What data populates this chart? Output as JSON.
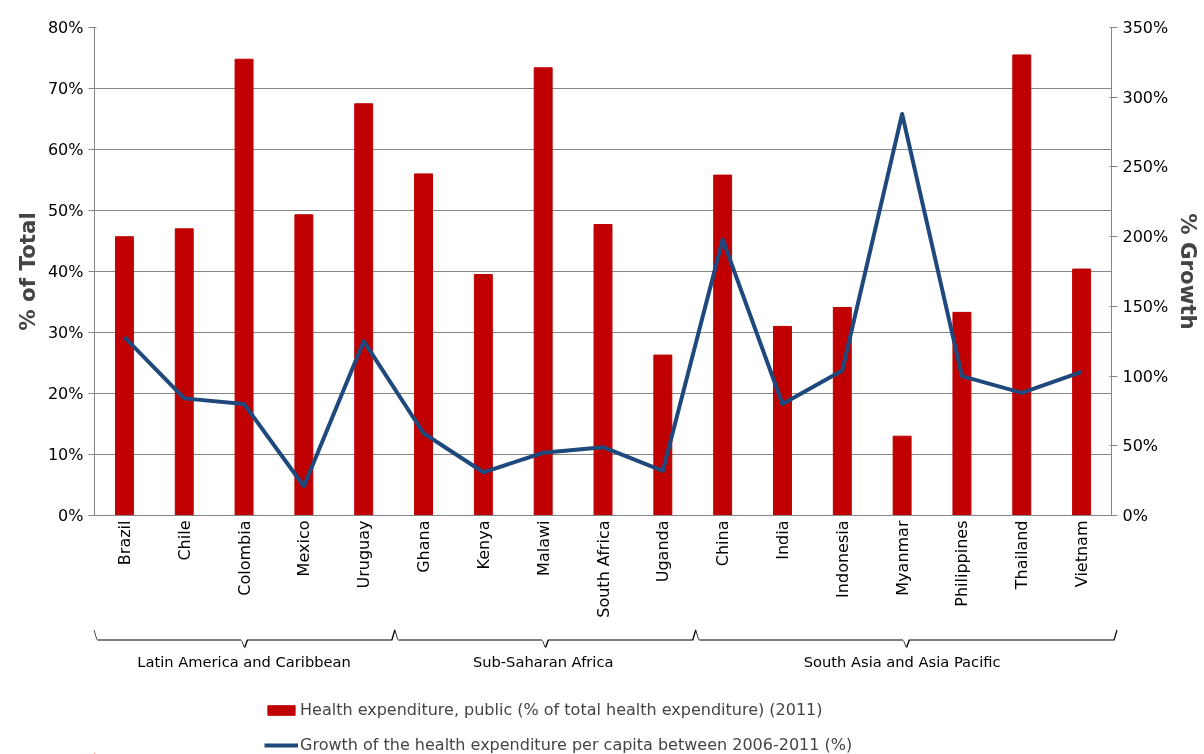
{
  "chart_data": {
    "type": "bar",
    "categories": [
      "Brazil",
      "Chile",
      "Colombia",
      "Mexico",
      "Uruguay",
      "Ghana",
      "Kenya",
      "Malawi",
      "South Africa",
      "Uganda",
      "China",
      "India",
      "Indonesia",
      "Myanmar",
      "Philippines",
      "Thailand",
      "Vietnam"
    ],
    "series": [
      {
        "name": "Health expenditure, public (% of total health expenditure) (2011)",
        "color": "#c00000",
        "values": [
          45.7,
          47.0,
          74.8,
          49.3,
          67.5,
          56.0,
          39.5,
          73.4,
          47.7,
          26.3,
          55.8,
          31.0,
          34.1,
          13.0,
          33.3,
          75.5,
          40.4
        ]
      },
      {
        "name": "Growth of the health expenditure per capita between 2006-2011 (%)",
        "type": "line",
        "axis": "y2",
        "color": "#1f497d",
        "values": [
          128,
          84,
          80,
          21,
          125,
          59,
          31,
          45,
          49,
          32,
          198,
          80,
          104,
          288,
          100,
          88,
          103
        ]
      }
    ],
    "ylabel": "% of Total",
    "y2label": "% Growth",
    "ylim": [
      0,
      80
    ],
    "yticks": [
      {
        "value": 0,
        "label": "0%"
      },
      {
        "value": 10,
        "label": "10%"
      },
      {
        "value": 20,
        "label": "20%"
      },
      {
        "value": 30,
        "label": "30%"
      },
      {
        "value": 40,
        "label": "40%"
      },
      {
        "value": 50,
        "label": "50%"
      },
      {
        "value": 60,
        "label": "60%"
      },
      {
        "value": 70,
        "label": "70%"
      },
      {
        "value": 80,
        "label": "80%"
      }
    ],
    "y2lim": [
      0,
      350
    ],
    "y2ticks": [
      {
        "value": 0,
        "label": "0%"
      },
      {
        "value": 50,
        "label": "50%"
      },
      {
        "value": 100,
        "label": "100%"
      },
      {
        "value": 150,
        "label": "150%"
      },
      {
        "value": 200,
        "label": "200%"
      },
      {
        "value": 250,
        "label": "250%"
      },
      {
        "value": 300,
        "label": "300%"
      },
      {
        "value": 350,
        "label": "350%"
      }
    ],
    "annotations": [
      "Latin America and Caribbean",
      "Sub-Saharan Africa",
      "South Asia and Asia Pacific"
    ],
    "grid": "y",
    "legend": "bottom",
    "marker": "none",
    "line_style": "solid"
  }
}
